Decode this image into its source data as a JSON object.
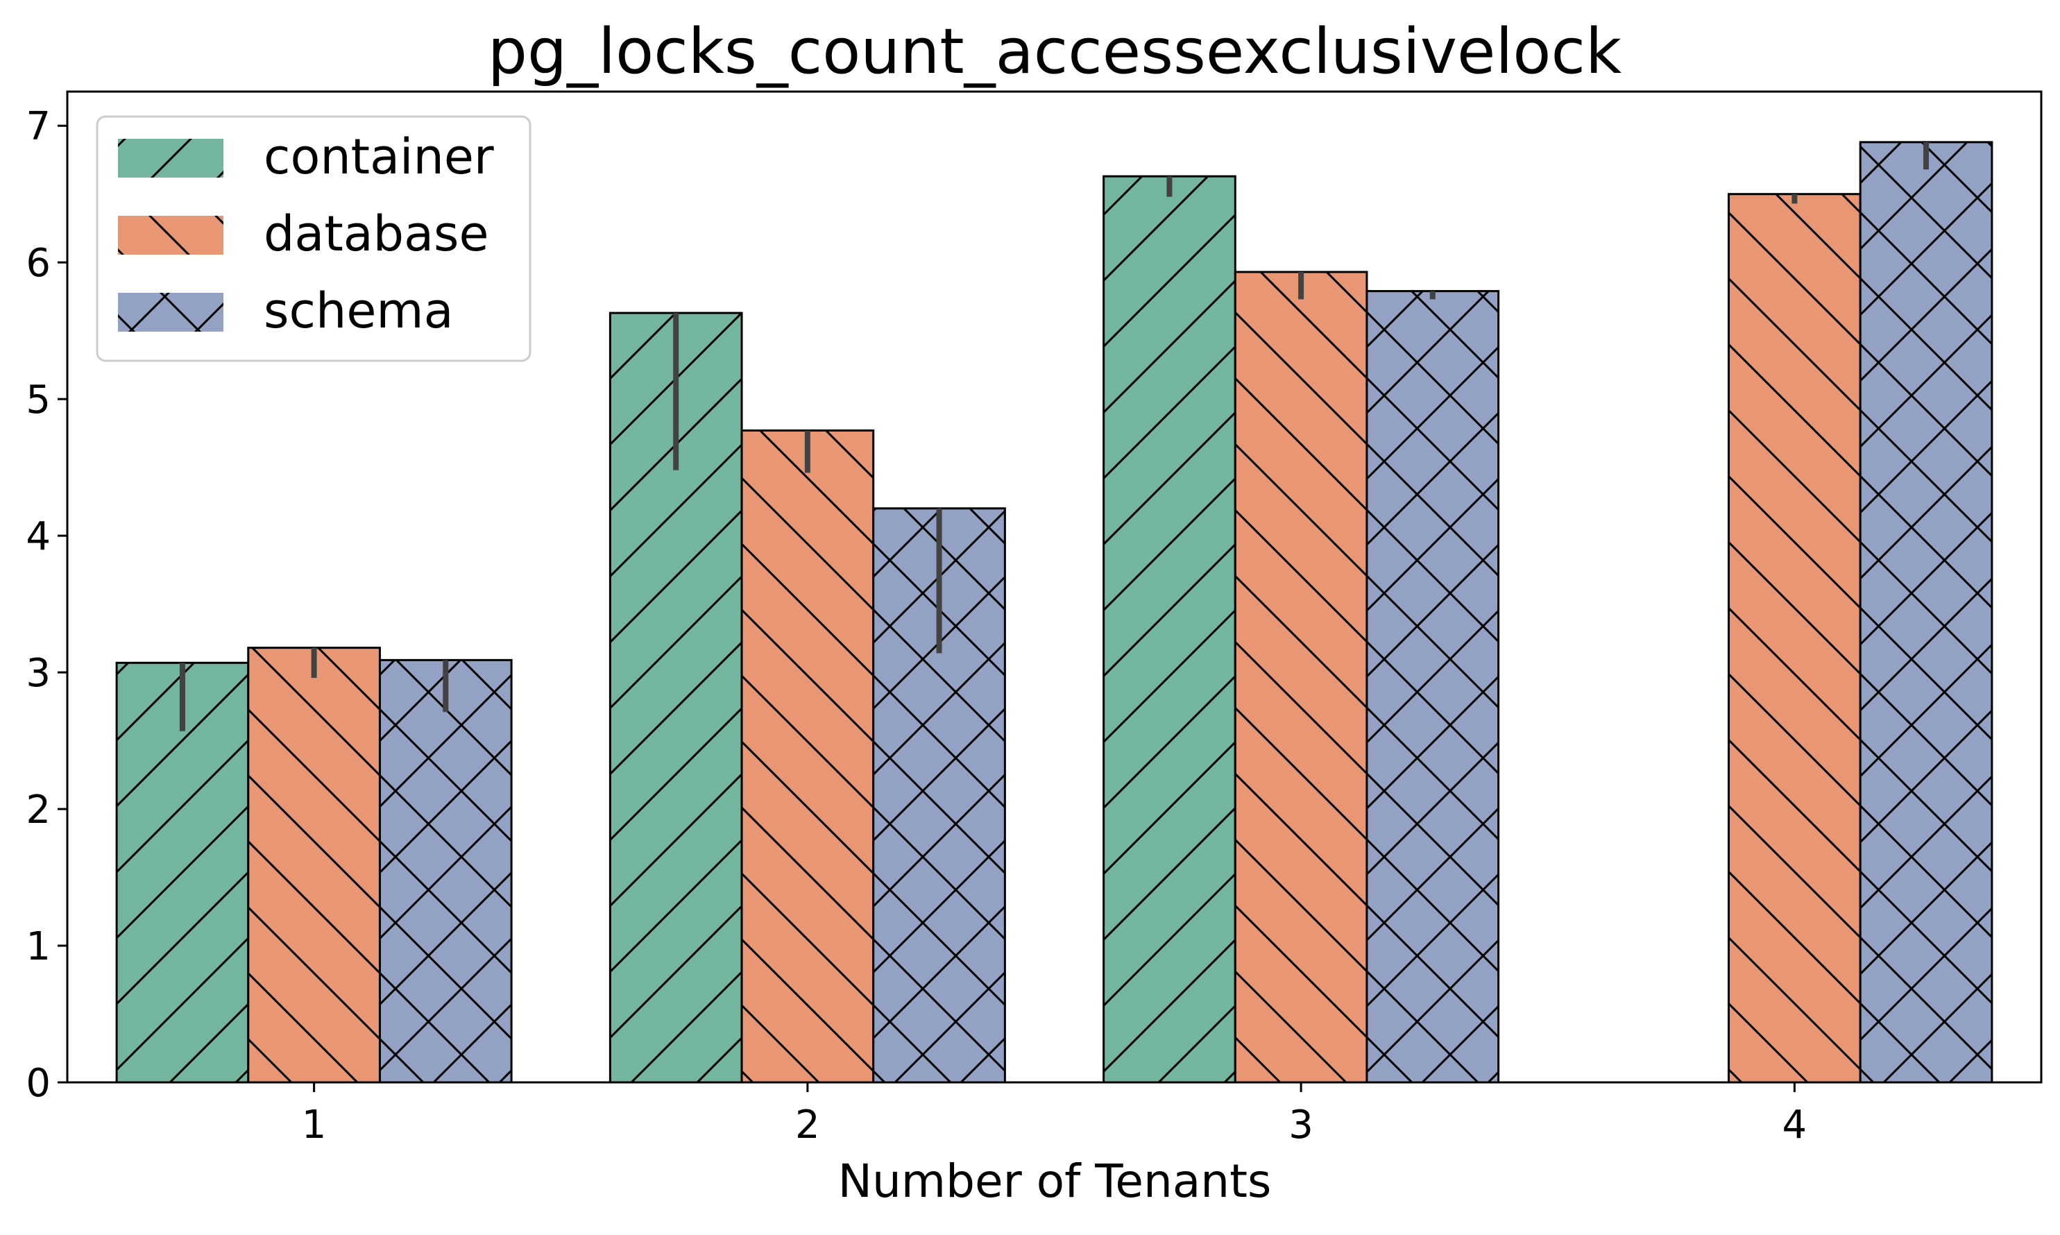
{
  "chart_data": {
    "type": "bar",
    "title": "pg_locks_count_accessexclusivelock",
    "xlabel": "Number of Tenants",
    "ylabel": "",
    "categories": [
      "1",
      "2",
      "3",
      "4"
    ],
    "ylim": [
      0,
      7.25
    ],
    "yticks": [
      0,
      1,
      2,
      3,
      4,
      5,
      6,
      7
    ],
    "grid": false,
    "legend_position": "top-left",
    "series": [
      {
        "name": "container",
        "color": "#73b59f",
        "hatch": "forward-diagonal",
        "values": [
          3.07,
          5.63,
          6.63,
          null
        ],
        "error_low": [
          2.57,
          4.48,
          6.48,
          null
        ],
        "error_high": [
          3.07,
          5.63,
          6.63,
          null
        ]
      },
      {
        "name": "database",
        "color": "#e99675",
        "hatch": "back-diagonal",
        "values": [
          3.18,
          4.77,
          5.93,
          6.5
        ],
        "error_low": [
          2.96,
          4.46,
          5.73,
          6.43
        ],
        "error_high": [
          3.18,
          4.77,
          5.93,
          6.5
        ]
      },
      {
        "name": "schema",
        "color": "#93a2c4",
        "hatch": "cross",
        "values": [
          3.09,
          4.2,
          5.79,
          6.88
        ],
        "error_low": [
          2.71,
          3.14,
          5.73,
          6.68
        ],
        "error_high": [
          3.09,
          4.2,
          5.79,
          6.88
        ]
      }
    ]
  }
}
